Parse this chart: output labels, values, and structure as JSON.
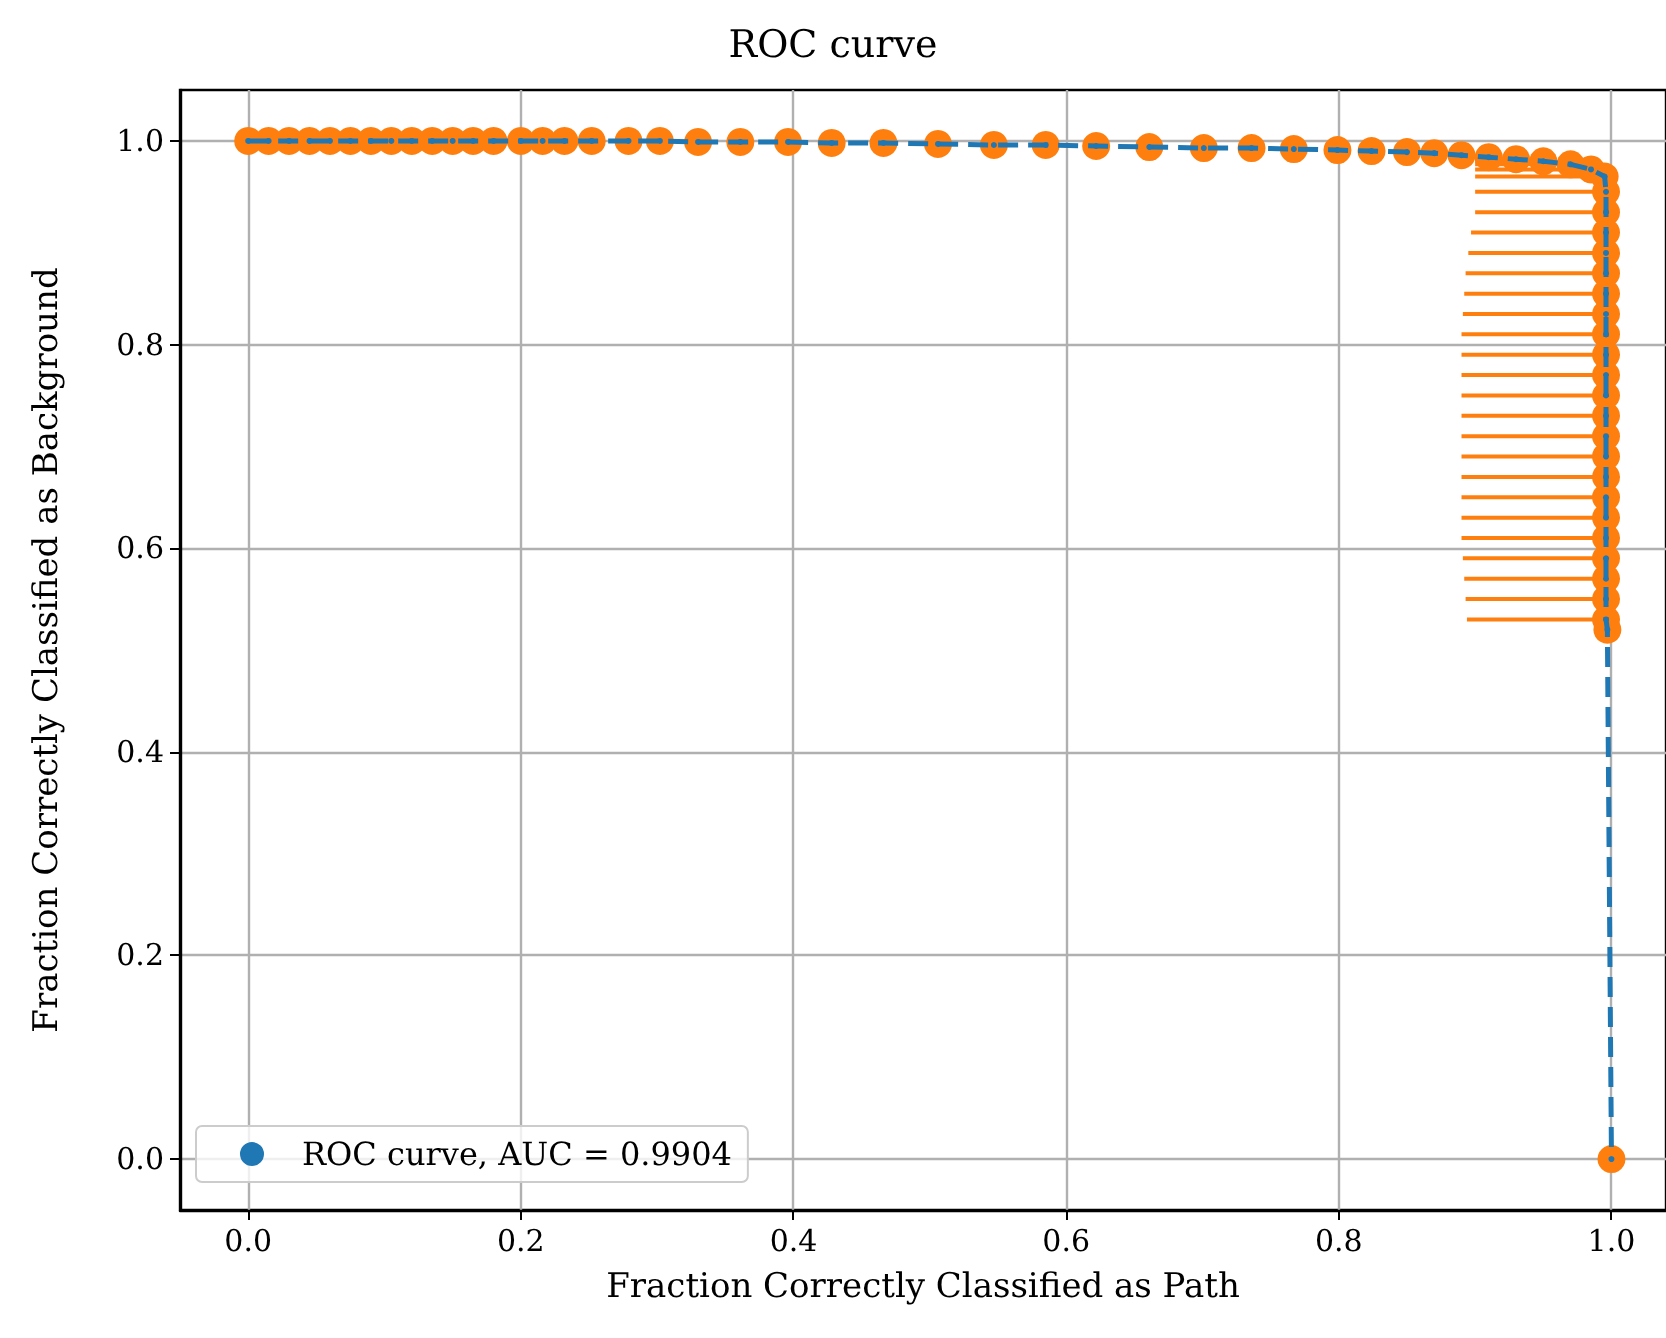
{
  "chart_data": {
    "type": "line",
    "title": "ROC curve",
    "xlabel": "Fraction Correctly Classified as Path",
    "ylabel": "Fraction Correctly Classified as Background",
    "xlim": [
      -0.05,
      1.04
    ],
    "ylim": [
      -0.05,
      1.05
    ],
    "xticks": [
      {
        "value": 0,
        "label": "0.0"
      },
      {
        "value": 0.2,
        "label": "0.2"
      },
      {
        "value": 0.4,
        "label": "0.4"
      },
      {
        "value": 0.6,
        "label": "0.6"
      },
      {
        "value": 0.8,
        "label": "0.8"
      },
      {
        "value": 1,
        "label": "1.0"
      }
    ],
    "yticks": [
      {
        "value": 0,
        "label": "0.0"
      },
      {
        "value": 0.2,
        "label": "0.2"
      },
      {
        "value": 0.4,
        "label": "0.4"
      },
      {
        "value": 0.6,
        "label": "0.6"
      },
      {
        "value": 0.8,
        "label": "0.8"
      },
      {
        "value": 1,
        "label": "1.0"
      }
    ],
    "grid": true,
    "legend": "bottom left",
    "marker": "circle",
    "line_style": "dashed",
    "series": [
      {
        "name": "ROC curve, AUC = 0.9904",
        "color": "#1f77b4",
        "x": [
          0,
          0.015,
          0.03,
          0.045,
          0.06,
          0.075,
          0.09,
          0.105,
          0.12,
          0.135,
          0.15,
          0.165,
          0.18,
          0.2,
          0.216,
          0.232,
          0.252,
          0.279,
          0.302,
          0.33,
          0.361,
          0.396,
          0.428,
          0.466,
          0.506,
          0.547,
          0.585,
          0.622,
          0.661,
          0.701,
          0.736,
          0.767,
          0.799,
          0.824,
          0.85,
          0.87,
          0.89,
          0.91,
          0.93,
          0.95,
          0.97,
          0.985,
          0.995,
          0.996,
          0.996,
          0.996,
          0.996,
          0.996,
          0.996,
          0.996,
          0.996,
          0.996,
          0.996,
          0.996,
          0.996,
          0.996,
          0.996,
          0.996,
          0.996,
          0.996,
          0.996,
          0.996,
          0.996,
          0.996,
          0.996,
          0.997,
          1.0
        ],
        "values": [
          1,
          1,
          1,
          1,
          1,
          1,
          1,
          1,
          1,
          1,
          1,
          1,
          1,
          1,
          1,
          1,
          1,
          1,
          1,
          0.999,
          0.999,
          0.999,
          0.998,
          0.998,
          0.997,
          0.996,
          0.996,
          0.995,
          0.994,
          0.993,
          0.993,
          0.992,
          0.991,
          0.99,
          0.989,
          0.988,
          0.986,
          0.984,
          0.982,
          0.98,
          0.977,
          0.972,
          0.965,
          0.95,
          0.93,
          0.91,
          0.89,
          0.87,
          0.85,
          0.83,
          0.81,
          0.79,
          0.77,
          0.75,
          0.73,
          0.71,
          0.69,
          0.67,
          0.65,
          0.63,
          0.61,
          0.59,
          0.57,
          0.55,
          0.53,
          0.52,
          0
        ]
      },
      {
        "type": "scatter",
        "color": "#ff7f0e",
        "x": [
          0,
          0.015,
          0.03,
          0.045,
          0.06,
          0.075,
          0.09,
          0.105,
          0.12,
          0.135,
          0.15,
          0.165,
          0.18,
          0.2,
          0.216,
          0.232,
          0.252,
          0.279,
          0.302,
          0.33,
          0.361,
          0.396,
          0.428,
          0.466,
          0.506,
          0.547,
          0.585,
          0.622,
          0.661,
          0.701,
          0.736,
          0.767,
          0.799,
          0.824,
          0.85,
          0.87,
          0.89,
          0.91,
          0.93,
          0.95,
          0.97,
          0.985,
          0.995,
          0.996,
          0.996,
          0.996,
          0.996,
          0.996,
          0.996,
          0.996,
          0.996,
          0.996,
          0.996,
          0.996,
          0.996,
          0.996,
          0.996,
          0.996,
          0.996,
          0.996,
          0.996,
          0.996,
          0.996,
          0.996,
          0.996,
          0.997,
          1.0
        ],
        "values": [
          1,
          1,
          1,
          1,
          1,
          1,
          1,
          1,
          1,
          1,
          1,
          1,
          1,
          1,
          1,
          1,
          1,
          1,
          1,
          0.999,
          0.999,
          0.999,
          0.998,
          0.998,
          0.997,
          0.996,
          0.996,
          0.995,
          0.994,
          0.993,
          0.993,
          0.992,
          0.991,
          0.99,
          0.989,
          0.988,
          0.986,
          0.984,
          0.982,
          0.98,
          0.977,
          0.972,
          0.965,
          0.95,
          0.93,
          0.91,
          0.89,
          0.87,
          0.85,
          0.83,
          0.81,
          0.79,
          0.77,
          0.75,
          0.73,
          0.71,
          0.69,
          0.67,
          0.65,
          0.63,
          0.61,
          0.59,
          0.57,
          0.55,
          0.53,
          0.52,
          0
        ],
        "xerrors": [
          null,
          null,
          null,
          null,
          null,
          null,
          null,
          null,
          null,
          null,
          null,
          null,
          null,
          null,
          null,
          null,
          null,
          null,
          null,
          null,
          null,
          null,
          null,
          null,
          null,
          null,
          null,
          null,
          null,
          null,
          null,
          null,
          null,
          null,
          null,
          null,
          null,
          [
            0.9,
            0.91
          ],
          [
            0.9,
            0.93
          ],
          [
            0.9,
            0.95
          ],
          [
            0.9,
            0.97
          ],
          [
            0.9,
            0.985
          ],
          [
            0.9,
            0.995
          ],
          [
            0.9,
            0.996
          ],
          [
            0.9,
            0.996
          ],
          [
            0.897,
            0.996
          ],
          [
            0.895,
            0.996
          ],
          [
            0.893,
            0.996
          ],
          [
            0.892,
            0.996
          ],
          [
            0.891,
            0.996
          ],
          [
            0.89,
            0.996
          ],
          [
            0.89,
            0.996
          ],
          [
            0.89,
            0.996
          ],
          [
            0.89,
            0.996
          ],
          [
            0.89,
            0.996
          ],
          [
            0.89,
            0.996
          ],
          [
            0.89,
            0.996
          ],
          [
            0.89,
            0.996
          ],
          [
            0.89,
            0.996
          ],
          [
            0.89,
            0.996
          ],
          [
            0.89,
            0.996
          ],
          [
            0.891,
            0.996
          ],
          [
            0.892,
            0.996
          ],
          [
            0.893,
            0.996
          ],
          [
            0.894,
            0.996
          ],
          null,
          null
        ]
      }
    ]
  }
}
